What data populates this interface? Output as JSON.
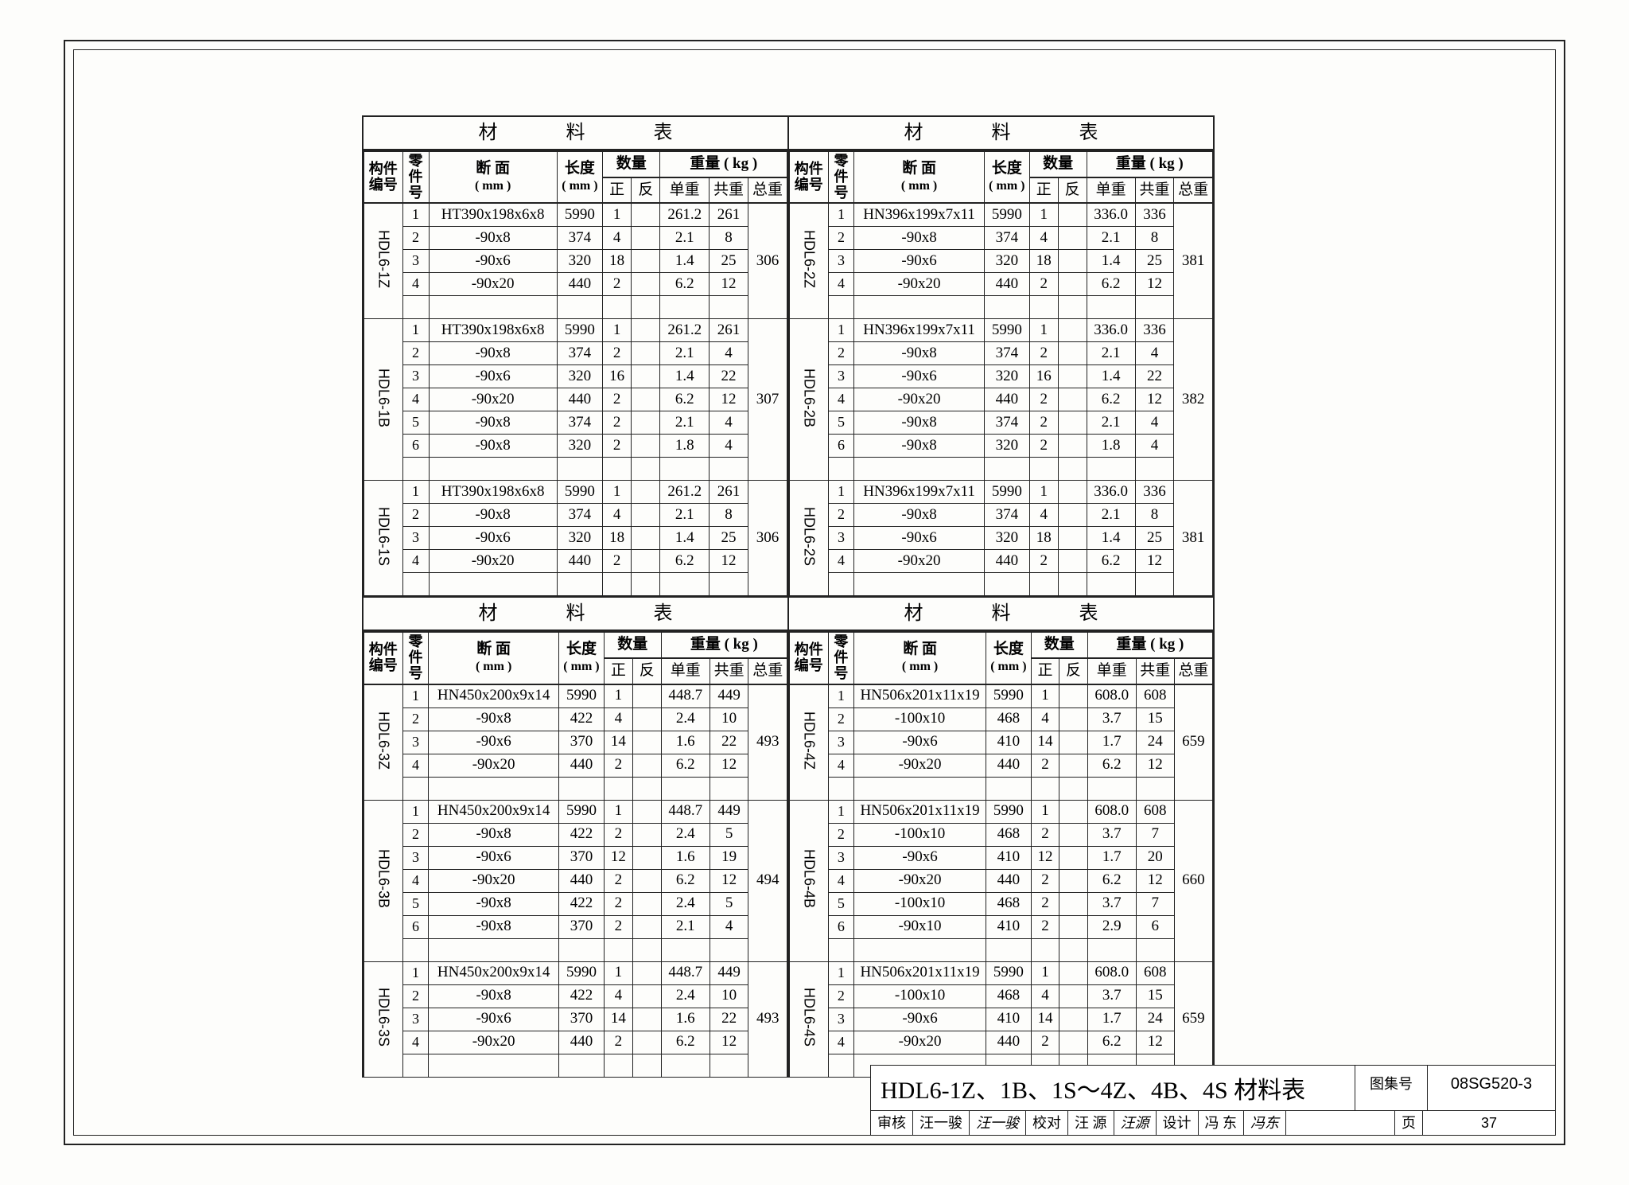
{
  "labels": {
    "panel_title": "材 料 表",
    "head_component": "构件编号",
    "head_part": "零件号",
    "head_section": "断 面",
    "head_section_unit": "( mm )",
    "head_length": "长度",
    "head_length_unit": "( mm )",
    "head_qty": "数量",
    "head_qty_z": "正",
    "head_qty_f": "反",
    "head_weight": "重量 ( kg )",
    "head_uw": "单重",
    "head_gw": "共重",
    "head_tw": "总重"
  },
  "panels": [
    {
      "groups": [
        {
          "id": "HDL6-1Z",
          "total": "306",
          "rows": [
            {
              "n": "1",
              "sect": "HT390x198x6x8",
              "len": "5990",
              "z": "1",
              "f": "",
              "uw": "261.2",
              "gw": "261"
            },
            {
              "n": "2",
              "sect": "-90x8",
              "len": "374",
              "z": "4",
              "f": "",
              "uw": "2.1",
              "gw": "8"
            },
            {
              "n": "3",
              "sect": "-90x6",
              "len": "320",
              "z": "18",
              "f": "",
              "uw": "1.4",
              "gw": "25"
            },
            {
              "n": "4",
              "sect": "-90x20",
              "len": "440",
              "z": "2",
              "f": "",
              "uw": "6.2",
              "gw": "12"
            }
          ]
        },
        {
          "id": "HDL6-1B",
          "total": "307",
          "rows": [
            {
              "n": "1",
              "sect": "HT390x198x6x8",
              "len": "5990",
              "z": "1",
              "f": "",
              "uw": "261.2",
              "gw": "261"
            },
            {
              "n": "2",
              "sect": "-90x8",
              "len": "374",
              "z": "2",
              "f": "",
              "uw": "2.1",
              "gw": "4"
            },
            {
              "n": "3",
              "sect": "-90x6",
              "len": "320",
              "z": "16",
              "f": "",
              "uw": "1.4",
              "gw": "22"
            },
            {
              "n": "4",
              "sect": "-90x20",
              "len": "440",
              "z": "2",
              "f": "",
              "uw": "6.2",
              "gw": "12"
            },
            {
              "n": "5",
              "sect": "-90x8",
              "len": "374",
              "z": "2",
              "f": "",
              "uw": "2.1",
              "gw": "4"
            },
            {
              "n": "6",
              "sect": "-90x8",
              "len": "320",
              "z": "2",
              "f": "",
              "uw": "1.8",
              "gw": "4"
            }
          ]
        },
        {
          "id": "HDL6-1S",
          "total": "306",
          "rows": [
            {
              "n": "1",
              "sect": "HT390x198x6x8",
              "len": "5990",
              "z": "1",
              "f": "",
              "uw": "261.2",
              "gw": "261"
            },
            {
              "n": "2",
              "sect": "-90x8",
              "len": "374",
              "z": "4",
              "f": "",
              "uw": "2.1",
              "gw": "8"
            },
            {
              "n": "3",
              "sect": "-90x6",
              "len": "320",
              "z": "18",
              "f": "",
              "uw": "1.4",
              "gw": "25"
            },
            {
              "n": "4",
              "sect": "-90x20",
              "len": "440",
              "z": "2",
              "f": "",
              "uw": "6.2",
              "gw": "12"
            }
          ]
        }
      ]
    },
    {
      "groups": [
        {
          "id": "HDL6-2Z",
          "total": "381",
          "rows": [
            {
              "n": "1",
              "sect": "HN396x199x7x11",
              "len": "5990",
              "z": "1",
              "f": "",
              "uw": "336.0",
              "gw": "336"
            },
            {
              "n": "2",
              "sect": "-90x8",
              "len": "374",
              "z": "4",
              "f": "",
              "uw": "2.1",
              "gw": "8"
            },
            {
              "n": "3",
              "sect": "-90x6",
              "len": "320",
              "z": "18",
              "f": "",
              "uw": "1.4",
              "gw": "25"
            },
            {
              "n": "4",
              "sect": "-90x20",
              "len": "440",
              "z": "2",
              "f": "",
              "uw": "6.2",
              "gw": "12"
            }
          ]
        },
        {
          "id": "HDL6-2B",
          "total": "382",
          "rows": [
            {
              "n": "1",
              "sect": "HN396x199x7x11",
              "len": "5990",
              "z": "1",
              "f": "",
              "uw": "336.0",
              "gw": "336"
            },
            {
              "n": "2",
              "sect": "-90x8",
              "len": "374",
              "z": "2",
              "f": "",
              "uw": "2.1",
              "gw": "4"
            },
            {
              "n": "3",
              "sect": "-90x6",
              "len": "320",
              "z": "16",
              "f": "",
              "uw": "1.4",
              "gw": "22"
            },
            {
              "n": "4",
              "sect": "-90x20",
              "len": "440",
              "z": "2",
              "f": "",
              "uw": "6.2",
              "gw": "12"
            },
            {
              "n": "5",
              "sect": "-90x8",
              "len": "374",
              "z": "2",
              "f": "",
              "uw": "2.1",
              "gw": "4"
            },
            {
              "n": "6",
              "sect": "-90x8",
              "len": "320",
              "z": "2",
              "f": "",
              "uw": "1.8",
              "gw": "4"
            }
          ]
        },
        {
          "id": "HDL6-2S",
          "total": "381",
          "rows": [
            {
              "n": "1",
              "sect": "HN396x199x7x11",
              "len": "5990",
              "z": "1",
              "f": "",
              "uw": "336.0",
              "gw": "336"
            },
            {
              "n": "2",
              "sect": "-90x8",
              "len": "374",
              "z": "4",
              "f": "",
              "uw": "2.1",
              "gw": "8"
            },
            {
              "n": "3",
              "sect": "-90x6",
              "len": "320",
              "z": "18",
              "f": "",
              "uw": "1.4",
              "gw": "25"
            },
            {
              "n": "4",
              "sect": "-90x20",
              "len": "440",
              "z": "2",
              "f": "",
              "uw": "6.2",
              "gw": "12"
            }
          ]
        }
      ]
    },
    {
      "groups": [
        {
          "id": "HDL6-3Z",
          "total": "493",
          "rows": [
            {
              "n": "1",
              "sect": "HN450x200x9x14",
              "len": "5990",
              "z": "1",
              "f": "",
              "uw": "448.7",
              "gw": "449"
            },
            {
              "n": "2",
              "sect": "-90x8",
              "len": "422",
              "z": "4",
              "f": "",
              "uw": "2.4",
              "gw": "10"
            },
            {
              "n": "3",
              "sect": "-90x6",
              "len": "370",
              "z": "14",
              "f": "",
              "uw": "1.6",
              "gw": "22"
            },
            {
              "n": "4",
              "sect": "-90x20",
              "len": "440",
              "z": "2",
              "f": "",
              "uw": "6.2",
              "gw": "12"
            }
          ]
        },
        {
          "id": "HDL6-3B",
          "total": "494",
          "rows": [
            {
              "n": "1",
              "sect": "HN450x200x9x14",
              "len": "5990",
              "z": "1",
              "f": "",
              "uw": "448.7",
              "gw": "449"
            },
            {
              "n": "2",
              "sect": "-90x8",
              "len": "422",
              "z": "2",
              "f": "",
              "uw": "2.4",
              "gw": "5"
            },
            {
              "n": "3",
              "sect": "-90x6",
              "len": "370",
              "z": "12",
              "f": "",
              "uw": "1.6",
              "gw": "19"
            },
            {
              "n": "4",
              "sect": "-90x20",
              "len": "440",
              "z": "2",
              "f": "",
              "uw": "6.2",
              "gw": "12"
            },
            {
              "n": "5",
              "sect": "-90x8",
              "len": "422",
              "z": "2",
              "f": "",
              "uw": "2.4",
              "gw": "5"
            },
            {
              "n": "6",
              "sect": "-90x8",
              "len": "370",
              "z": "2",
              "f": "",
              "uw": "2.1",
              "gw": "4"
            }
          ]
        },
        {
          "id": "HDL6-3S",
          "total": "493",
          "rows": [
            {
              "n": "1",
              "sect": "HN450x200x9x14",
              "len": "5990",
              "z": "1",
              "f": "",
              "uw": "448.7",
              "gw": "449"
            },
            {
              "n": "2",
              "sect": "-90x8",
              "len": "422",
              "z": "4",
              "f": "",
              "uw": "2.4",
              "gw": "10"
            },
            {
              "n": "3",
              "sect": "-90x6",
              "len": "370",
              "z": "14",
              "f": "",
              "uw": "1.6",
              "gw": "22"
            },
            {
              "n": "4",
              "sect": "-90x20",
              "len": "440",
              "z": "2",
              "f": "",
              "uw": "6.2",
              "gw": "12"
            }
          ]
        }
      ]
    },
    {
      "groups": [
        {
          "id": "HDL6-4Z",
          "total": "659",
          "rows": [
            {
              "n": "1",
              "sect": "HN506x201x11x19",
              "len": "5990",
              "z": "1",
              "f": "",
              "uw": "608.0",
              "gw": "608"
            },
            {
              "n": "2",
              "sect": "-100x10",
              "len": "468",
              "z": "4",
              "f": "",
              "uw": "3.7",
              "gw": "15"
            },
            {
              "n": "3",
              "sect": "-90x6",
              "len": "410",
              "z": "14",
              "f": "",
              "uw": "1.7",
              "gw": "24"
            },
            {
              "n": "4",
              "sect": "-90x20",
              "len": "440",
              "z": "2",
              "f": "",
              "uw": "6.2",
              "gw": "12"
            }
          ]
        },
        {
          "id": "HDL6-4B",
          "total": "660",
          "rows": [
            {
              "n": "1",
              "sect": "HN506x201x11x19",
              "len": "5990",
              "z": "1",
              "f": "",
              "uw": "608.0",
              "gw": "608"
            },
            {
              "n": "2",
              "sect": "-100x10",
              "len": "468",
              "z": "2",
              "f": "",
              "uw": "3.7",
              "gw": "7"
            },
            {
              "n": "3",
              "sect": "-90x6",
              "len": "410",
              "z": "12",
              "f": "",
              "uw": "1.7",
              "gw": "20"
            },
            {
              "n": "4",
              "sect": "-90x20",
              "len": "440",
              "z": "2",
              "f": "",
              "uw": "6.2",
              "gw": "12"
            },
            {
              "n": "5",
              "sect": "-100x10",
              "len": "468",
              "z": "2",
              "f": "",
              "uw": "3.7",
              "gw": "7"
            },
            {
              "n": "6",
              "sect": "-90x10",
              "len": "410",
              "z": "2",
              "f": "",
              "uw": "2.9",
              "gw": "6"
            }
          ]
        },
        {
          "id": "HDL6-4S",
          "total": "659",
          "rows": [
            {
              "n": "1",
              "sect": "HN506x201x11x19",
              "len": "5990",
              "z": "1",
              "f": "",
              "uw": "608.0",
              "gw": "608"
            },
            {
              "n": "2",
              "sect": "-100x10",
              "len": "468",
              "z": "4",
              "f": "",
              "uw": "3.7",
              "gw": "15"
            },
            {
              "n": "3",
              "sect": "-90x6",
              "len": "410",
              "z": "14",
              "f": "",
              "uw": "1.7",
              "gw": "24"
            },
            {
              "n": "4",
              "sect": "-90x20",
              "len": "440",
              "z": "2",
              "f": "",
              "uw": "6.2",
              "gw": "12"
            }
          ]
        }
      ]
    }
  ],
  "titleblock": {
    "title": "HDL6-1Z、1B、1S～4Z、4B、4S 材料表",
    "dwg_label": "图集号",
    "dwg_no": "08SG520-3",
    "review": "审核",
    "review_name": "汪一骏",
    "review_sig": "汪一骏",
    "check": "校对",
    "check_name": "汪 源",
    "check_sig": "汪源",
    "design": "设计",
    "design_name": "冯 东",
    "design_sig": "冯东",
    "page_label": "页",
    "page_no": "37"
  }
}
